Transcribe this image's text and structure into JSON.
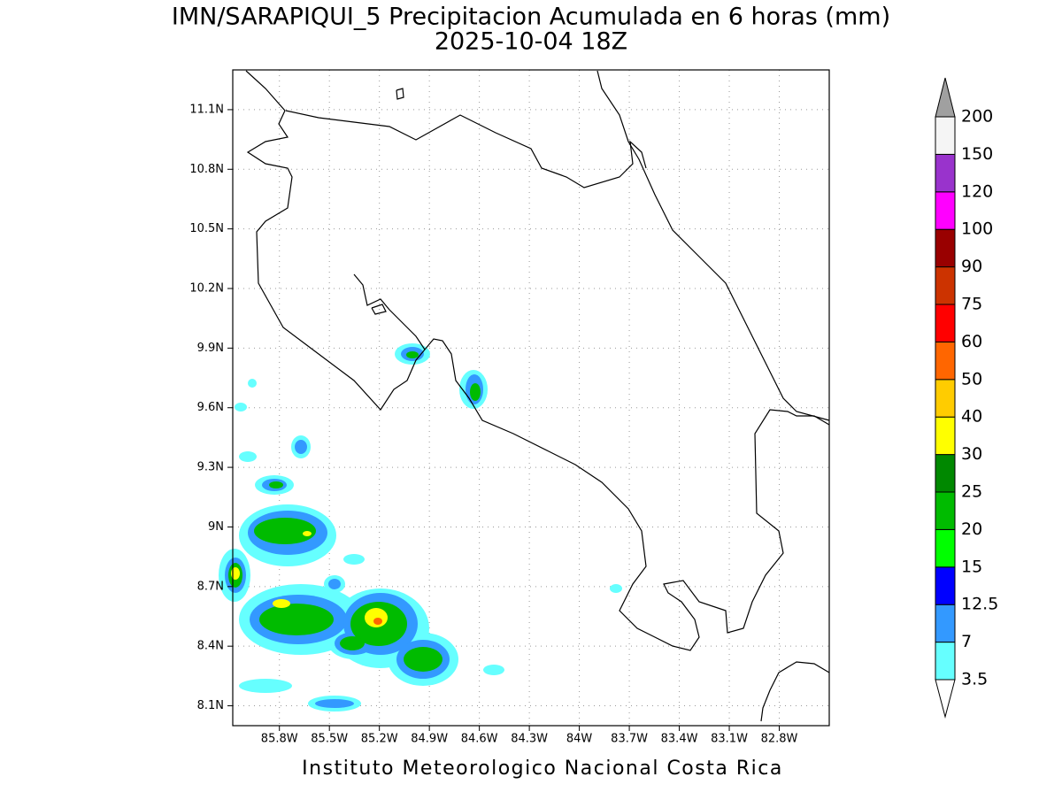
{
  "title": "IMN/SARAPIQUI_5 Precipitacion Acumulada en 6 horas (mm)",
  "subtitle": "2025-10-04 18Z",
  "footer": "Instituto Meteorologico Nacional Costa Rica",
  "map": {
    "lon_range": [
      -86.08,
      -82.5
    ],
    "lat_range": [
      8.0,
      11.3
    ],
    "grid": true,
    "lon_ticks": [
      {
        "value": -85.8,
        "label": "85.8W"
      },
      {
        "value": -85.5,
        "label": "85.5W"
      },
      {
        "value": -85.2,
        "label": "85.2W"
      },
      {
        "value": -84.9,
        "label": "84.9W"
      },
      {
        "value": -84.6,
        "label": "84.6W"
      },
      {
        "value": -84.3,
        "label": "84.3W"
      },
      {
        "value": -84,
        "label": "84W"
      },
      {
        "value": -83.7,
        "label": "83.7W"
      },
      {
        "value": -83.4,
        "label": "83.4W"
      },
      {
        "value": -83.1,
        "label": "83.1W"
      },
      {
        "value": -82.8,
        "label": "82.8W"
      }
    ],
    "lat_ticks": [
      {
        "value": 8.1,
        "label": "8.1N"
      },
      {
        "value": 8.4,
        "label": "8.4N"
      },
      {
        "value": 8.7,
        "label": "8.7N"
      },
      {
        "value": 9,
        "label": "9N"
      },
      {
        "value": 9.3,
        "label": "9.3N"
      },
      {
        "value": 9.6,
        "label": "9.6N"
      },
      {
        "value": 9.9,
        "label": "9.9N"
      },
      {
        "value": 10.2,
        "label": "10.2N"
      },
      {
        "value": 10.5,
        "label": "10.5N"
      },
      {
        "value": 10.8,
        "label": "10.8N"
      },
      {
        "value": 11.1,
        "label": "11.1N"
      }
    ]
  },
  "colorbar": {
    "levels": [
      3.5,
      7,
      12.5,
      15,
      20,
      25,
      30,
      40,
      50,
      60,
      75,
      90,
      100,
      120,
      150,
      200
    ],
    "colors": [
      "#66ffff",
      "#3399ff",
      "#0000ff",
      "#00ff00",
      "#00bb00",
      "#008800",
      "#ffff00",
      "#ffcc00",
      "#ff6600",
      "#ff0000",
      "#cc3300",
      "#990000",
      "#ff00ff",
      "#9933cc",
      "#f5f5f5"
    ],
    "over_color": "#a0a0a0",
    "under_color": "#ffffff"
  }
}
